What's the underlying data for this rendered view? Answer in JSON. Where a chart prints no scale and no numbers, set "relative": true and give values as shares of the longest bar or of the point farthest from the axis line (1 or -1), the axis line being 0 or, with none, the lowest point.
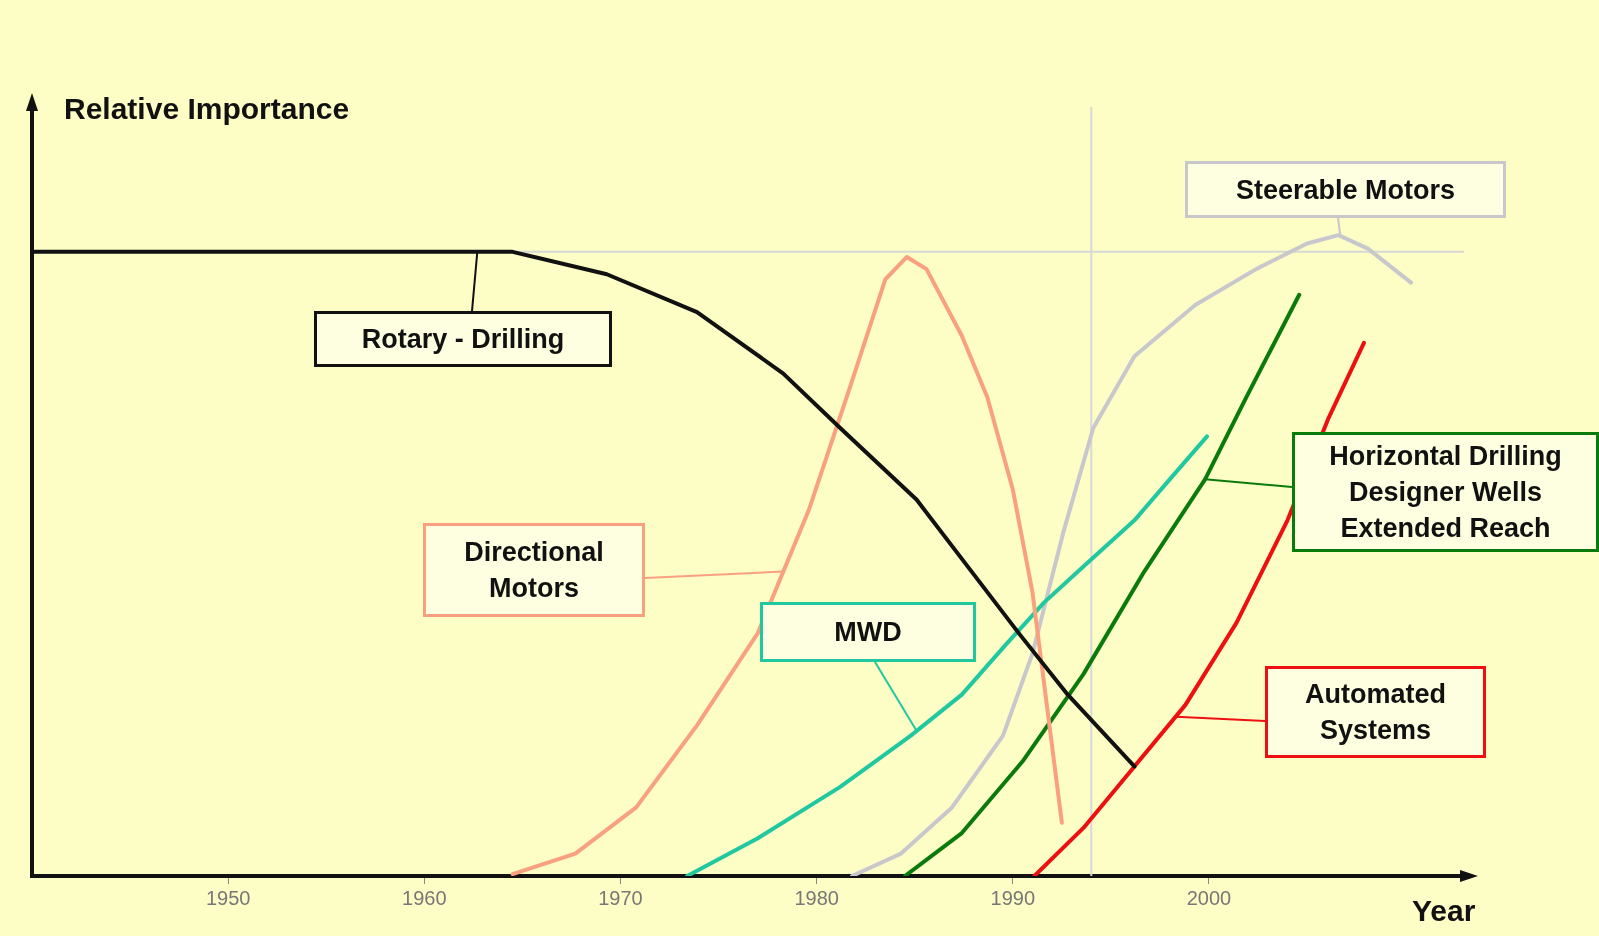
{
  "chart_data": {
    "type": "line",
    "relative": true,
    "ylabel": "Relative Importance",
    "xlabel": "Year",
    "xlim": [
      1940,
      2013
    ],
    "xticks": [
      1950,
      1960,
      1970,
      1980,
      1990,
      2000
    ],
    "grid": false,
    "legend": "right",
    "marker": "none",
    "line_style": "solid",
    "ref_lines": [
      {
        "axis": "x",
        "value": 1994,
        "color": "#d8d8d8"
      },
      {
        "axis": "y",
        "value": 0.974,
        "color": "#d8d8d8"
      }
    ],
    "series": [
      {
        "name": "Rotary - Drilling",
        "color": "#111111",
        "x": [
          1940,
          1964.5,
          1969.3,
          1973.9,
          1978.3,
          1981.2,
          1985.1,
          1987.9,
          1990.3,
          1992.8,
          1996.2
        ],
        "values": [
          0.974,
          0.974,
          0.939,
          0.88,
          0.784,
          0.699,
          0.587,
          0.475,
          0.379,
          0.283,
          0.171
        ]
      },
      {
        "name": "Directional Motors",
        "color": "#f8a080",
        "x": [
          1964.5,
          1967.7,
          1970.8,
          1973.9,
          1977.0,
          1979.6,
          1981.7,
          1983.5,
          1984.6,
          1985.6,
          1987.4,
          1988.7,
          1990.0,
          1991.0,
          1991.8,
          1992.5
        ],
        "values": [
          0.003,
          0.035,
          0.107,
          0.235,
          0.379,
          0.571,
          0.763,
          0.931,
          0.966,
          0.947,
          0.843,
          0.747,
          0.603,
          0.443,
          0.251,
          0.083
        ]
      },
      {
        "name": "MWD",
        "color": "#20c8a0",
        "x": [
          1973.4,
          1977.0,
          1981.2,
          1984.8,
          1987.4,
          1989.7,
          1991.6,
          1993.6,
          1996.2,
          1998.0,
          1999.9
        ],
        "values": [
          0,
          0.059,
          0.139,
          0.219,
          0.283,
          0.363,
          0.427,
          0.483,
          0.555,
          0.619,
          0.686
        ]
      },
      {
        "name": "Steerable Motors",
        "color": "#c8c8cc",
        "x": [
          1981.8,
          1984.3,
          1986.9,
          1989.5,
          1991.0,
          1992.6,
          1994.1,
          1996.2,
          1999.3,
          2002.4,
          2005.0,
          2006.6,
          2008.1,
          2010.3
        ],
        "values": [
          0,
          0.035,
          0.107,
          0.219,
          0.347,
          0.539,
          0.699,
          0.811,
          0.891,
          0.947,
          0.987,
          1,
          0.979,
          0.926
        ]
      },
      {
        "name": "Horizontal Drilling Designer Wells Extended Reach",
        "color": "#0a7a0a",
        "x": [
          1984.5,
          1987.4,
          1990.5,
          1993.6,
          1996.7,
          1999.8,
          2001.9,
          2004.6
        ],
        "values": [
          0,
          0.067,
          0.179,
          0.315,
          0.475,
          0.619,
          0.747,
          0.907
        ]
      },
      {
        "name": "Automated Systems",
        "color": "#ee1010",
        "x": [
          1991.1,
          1993.6,
          1996.2,
          1998.8,
          2001.4,
          2004.0,
          2006.1,
          2007.9
        ],
        "values": [
          0,
          0.075,
          0.171,
          0.267,
          0.395,
          0.555,
          0.715,
          0.832
        ]
      }
    ]
  }
}
